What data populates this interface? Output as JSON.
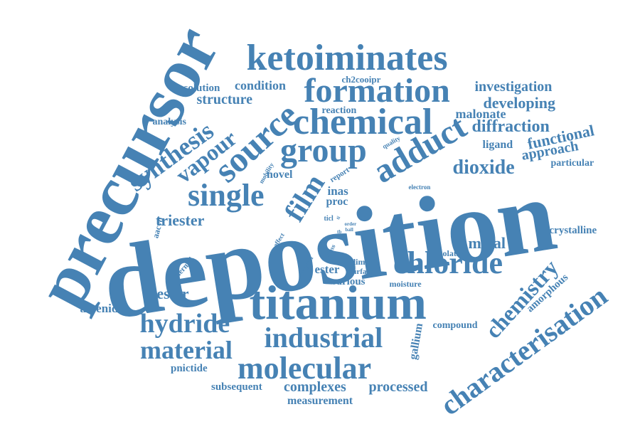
{
  "style": {
    "word_color": "#4682b4",
    "background": "#ffffff"
  },
  "words": [
    "precursor",
    "deposition",
    "titanium",
    "ketoiminates",
    "formation",
    "chemical",
    "group",
    "source",
    "adduct",
    "single",
    "synthesis",
    "vapour",
    "film",
    "chloride",
    "characterisation",
    "molecular",
    "industrial",
    "hydride",
    "material",
    "chemistry",
    "dioxide",
    "diffraction",
    "functional",
    "investigation",
    "developing",
    "malonate",
    "ligand",
    "approach",
    "particular",
    "crystalline",
    "metal",
    "isolation",
    "amorphous",
    "compound",
    "gallium",
    "arsenide",
    "diester",
    "triester",
    "pnictide",
    "subsequent",
    "complexes",
    "processed",
    "measurement",
    "structure",
    "condition",
    "solution",
    "ch2cooipr",
    "reaction",
    "analysis",
    "novel",
    "inas",
    "proc",
    "report",
    "quality",
    "electron",
    "mobility",
    "aacvd",
    "effect",
    "ticl",
    "order",
    "ball",
    "type",
    "glass",
    "crystal",
    "thermal",
    "ester",
    "dimeric",
    "surface",
    "various",
    "moisture",
    "ti",
    "tb"
  ]
}
